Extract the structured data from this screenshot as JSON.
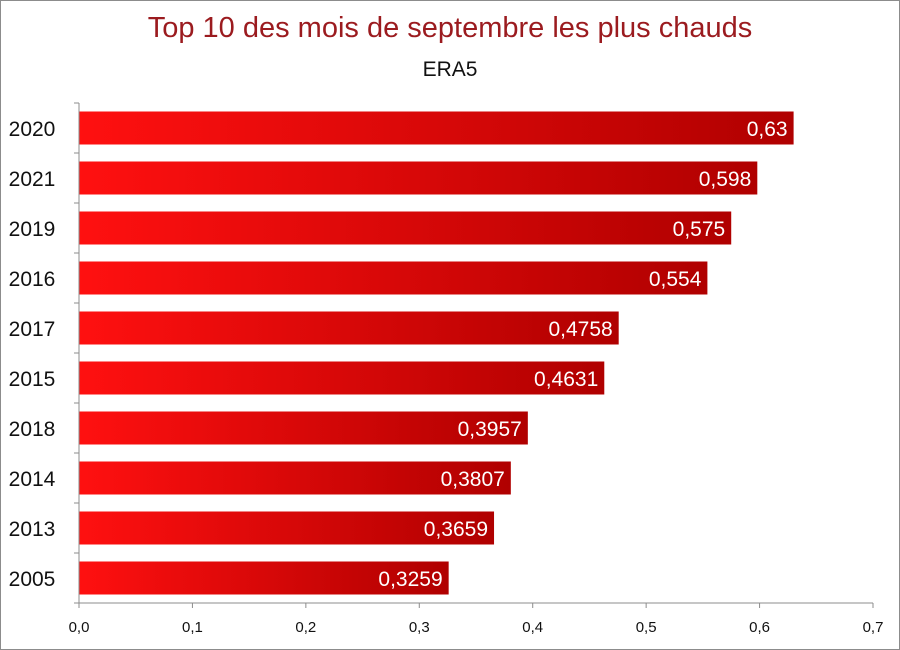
{
  "chart_data": {
    "type": "bar",
    "orientation": "horizontal",
    "title": "Top 10 des mois de septembre les plus chauds",
    "subtitle": "ERA5",
    "categories": [
      "2020",
      "2021",
      "2019",
      "2016",
      "2017",
      "2015",
      "2018",
      "2014",
      "2013",
      "2005"
    ],
    "values": [
      0.63,
      0.598,
      0.575,
      0.554,
      0.4758,
      0.4631,
      0.3957,
      0.3807,
      0.3659,
      0.3259
    ],
    "value_labels": [
      "0,63",
      "0,598",
      "0,575",
      "0,554",
      "0,4758",
      "0,4631",
      "0,3957",
      "0,3807",
      "0,3659",
      "0,3259"
    ],
    "xlim": [
      0,
      0.7
    ],
    "x_ticks": [
      0,
      0.1,
      0.2,
      0.3,
      0.4,
      0.5,
      0.6,
      0.7
    ],
    "x_tick_labels": [
      "0,0",
      "0,1",
      "0,2",
      "0,3",
      "0,4",
      "0,5",
      "0,6",
      "0,7"
    ],
    "grid": false,
    "legend": "none",
    "colors": {
      "bar_light": "#ff1010",
      "bar_dark": "#b00000",
      "title": "#9b1b1f",
      "axis": "#8c8c8c"
    }
  }
}
